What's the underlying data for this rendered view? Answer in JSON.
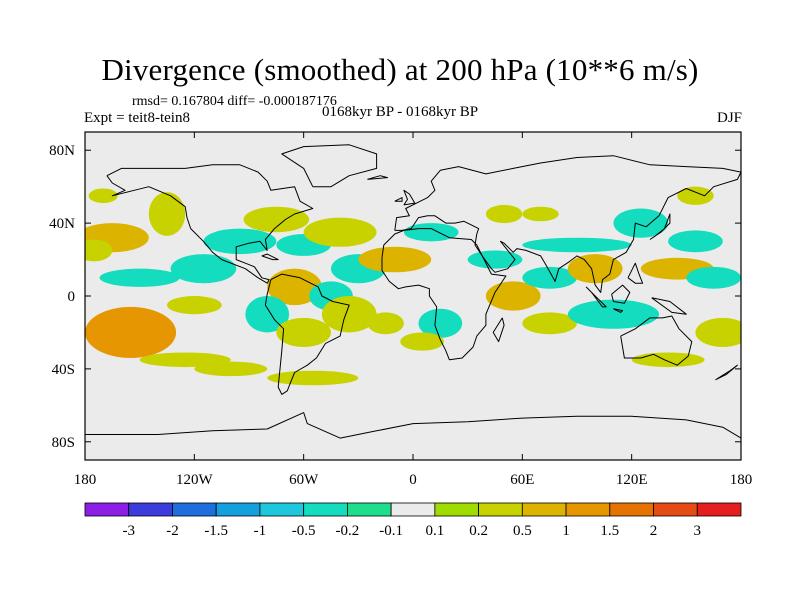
{
  "title": "Divergence (smoothed) at 200 hPa (10**6 m/s)",
  "stats_line": "rmsd= 0.167804 diff= -0.000187176",
  "expt_label": "Expt = teit8-tein8",
  "period_label": "0168kyr BP - 0168kyr BP",
  "season_label": "DJF",
  "map": {
    "projection": "cylindrical-equidistant",
    "lon_range": [
      -180,
      180
    ],
    "lat_range": [
      -90,
      90
    ],
    "lon_ticks": [
      {
        "value": -180,
        "label": "180"
      },
      {
        "value": -120,
        "label": "120W"
      },
      {
        "value": -60,
        "label": "60W"
      },
      {
        "value": 0,
        "label": "0"
      },
      {
        "value": 60,
        "label": "60E"
      },
      {
        "value": 120,
        "label": "120E"
      },
      {
        "value": 180,
        "label": "180"
      }
    ],
    "lat_ticks": [
      {
        "value": 80,
        "label": "80N"
      },
      {
        "value": 40,
        "label": "40N"
      },
      {
        "value": 0,
        "label": "0"
      },
      {
        "value": -40,
        "label": "40S"
      },
      {
        "value": -80,
        "label": "80S"
      }
    ],
    "background_color": "#ebebeb"
  },
  "colorbar": {
    "colors": [
      "#8c1ee6",
      "#3c3cdc",
      "#1e6edc",
      "#14a0dc",
      "#1ec8dc",
      "#14dcbe",
      "#1ede8c",
      "#ebebeb",
      "#a0dc00",
      "#c8d200",
      "#dcb400",
      "#e69600",
      "#e67300",
      "#e64b14",
      "#e61e1e"
    ],
    "labels": [
      "-3",
      "-2",
      "-1.5",
      "-1",
      "-0.5",
      "-0.2",
      "-0.1",
      "0.1",
      "0.2",
      "0.5",
      "1",
      "1.5",
      "2",
      "3"
    ]
  },
  "chart_data": {
    "type": "heatmap",
    "title": "Divergence (smoothed) at 200 hPa (10**6 m/s)",
    "xlabel": "",
    "ylabel": "",
    "xlim": [
      -180,
      180
    ],
    "ylim": [
      -90,
      90
    ],
    "levels": [
      -3,
      -2,
      -1.5,
      -1,
      -0.5,
      -0.2,
      -0.1,
      0.1,
      0.2,
      0.5,
      1,
      1.5,
      2,
      3
    ],
    "features": [
      {
        "lon": -155,
        "lat": -20,
        "value": 1.0,
        "rx": 25,
        "ry": 14
      },
      {
        "lon": -165,
        "lat": 32,
        "value": 0.5,
        "rx": 20,
        "ry": 8
      },
      {
        "lon": -150,
        "lat": 10,
        "value": -0.5,
        "rx": 22,
        "ry": 5
      },
      {
        "lon": -175,
        "lat": 25,
        "value": 0.2,
        "rx": 10,
        "ry": 6
      },
      {
        "lon": -115,
        "lat": 15,
        "value": -0.5,
        "rx": 18,
        "ry": 8
      },
      {
        "lon": -120,
        "lat": -5,
        "value": 0.3,
        "rx": 15,
        "ry": 5
      },
      {
        "lon": -135,
        "lat": 45,
        "value": 0.3,
        "rx": 10,
        "ry": 12
      },
      {
        "lon": -125,
        "lat": -35,
        "value": 0.2,
        "rx": 25,
        "ry": 4
      },
      {
        "lon": -95,
        "lat": 30,
        "value": -0.5,
        "rx": 20,
        "ry": 7
      },
      {
        "lon": -75,
        "lat": 42,
        "value": 0.3,
        "rx": 18,
        "ry": 7
      },
      {
        "lon": -60,
        "lat": 28,
        "value": -0.5,
        "rx": 15,
        "ry": 6
      },
      {
        "lon": -65,
        "lat": 5,
        "value": 0.7,
        "rx": 15,
        "ry": 10
      },
      {
        "lon": -80,
        "lat": -10,
        "value": -0.5,
        "rx": 12,
        "ry": 10
      },
      {
        "lon": -60,
        "lat": -20,
        "value": 0.3,
        "rx": 15,
        "ry": 8
      },
      {
        "lon": -45,
        "lat": 0,
        "value": -0.4,
        "rx": 12,
        "ry": 8
      },
      {
        "lon": -55,
        "lat": -45,
        "value": 0.2,
        "rx": 25,
        "ry": 4
      },
      {
        "lon": -40,
        "lat": 35,
        "value": 0.3,
        "rx": 20,
        "ry": 8
      },
      {
        "lon": -30,
        "lat": 15,
        "value": -0.3,
        "rx": 15,
        "ry": 8
      },
      {
        "lon": -35,
        "lat": -10,
        "value": 0.3,
        "rx": 15,
        "ry": 10
      },
      {
        "lon": -10,
        "lat": 20,
        "value": 0.5,
        "rx": 20,
        "ry": 7
      },
      {
        "lon": 10,
        "lat": 35,
        "value": -0.3,
        "rx": 15,
        "ry": 5
      },
      {
        "lon": -15,
        "lat": -15,
        "value": 0.3,
        "rx": 10,
        "ry": 6
      },
      {
        "lon": 15,
        "lat": -15,
        "value": -0.4,
        "rx": 12,
        "ry": 8
      },
      {
        "lon": 5,
        "lat": -25,
        "value": 0.3,
        "rx": 12,
        "ry": 5
      },
      {
        "lon": 45,
        "lat": 20,
        "value": -0.3,
        "rx": 15,
        "ry": 5
      },
      {
        "lon": 55,
        "lat": 0,
        "value": 0.5,
        "rx": 15,
        "ry": 8
      },
      {
        "lon": 75,
        "lat": 10,
        "value": -0.4,
        "rx": 15,
        "ry": 6
      },
      {
        "lon": 75,
        "lat": -15,
        "value": 0.3,
        "rx": 15,
        "ry": 6
      },
      {
        "lon": 90,
        "lat": 28,
        "value": -0.3,
        "rx": 30,
        "ry": 4
      },
      {
        "lon": 100,
        "lat": 15,
        "value": 0.5,
        "rx": 15,
        "ry": 8
      },
      {
        "lon": 110,
        "lat": -10,
        "value": -0.5,
        "rx": 25,
        "ry": 8
      },
      {
        "lon": 125,
        "lat": 40,
        "value": -0.4,
        "rx": 15,
        "ry": 8
      },
      {
        "lon": 145,
        "lat": 15,
        "value": 0.7,
        "rx": 20,
        "ry": 6
      },
      {
        "lon": 155,
        "lat": 30,
        "value": -0.3,
        "rx": 15,
        "ry": 6
      },
      {
        "lon": 165,
        "lat": 10,
        "value": -0.4,
        "rx": 15,
        "ry": 6
      },
      {
        "lon": 170,
        "lat": -20,
        "value": 0.3,
        "rx": 15,
        "ry": 8
      },
      {
        "lon": 140,
        "lat": -35,
        "value": 0.2,
        "rx": 20,
        "ry": 4
      },
      {
        "lon": 155,
        "lat": 55,
        "value": 0.3,
        "rx": 10,
        "ry": 5
      },
      {
        "lon": 50,
        "lat": 45,
        "value": 0.2,
        "rx": 10,
        "ry": 5
      },
      {
        "lon": 70,
        "lat": 45,
        "value": 0.2,
        "rx": 10,
        "ry": 4
      },
      {
        "lon": -170,
        "lat": 55,
        "value": 0.2,
        "rx": 8,
        "ry": 4
      },
      {
        "lon": -100,
        "lat": -40,
        "value": 0.2,
        "rx": 20,
        "ry": 4
      }
    ]
  }
}
